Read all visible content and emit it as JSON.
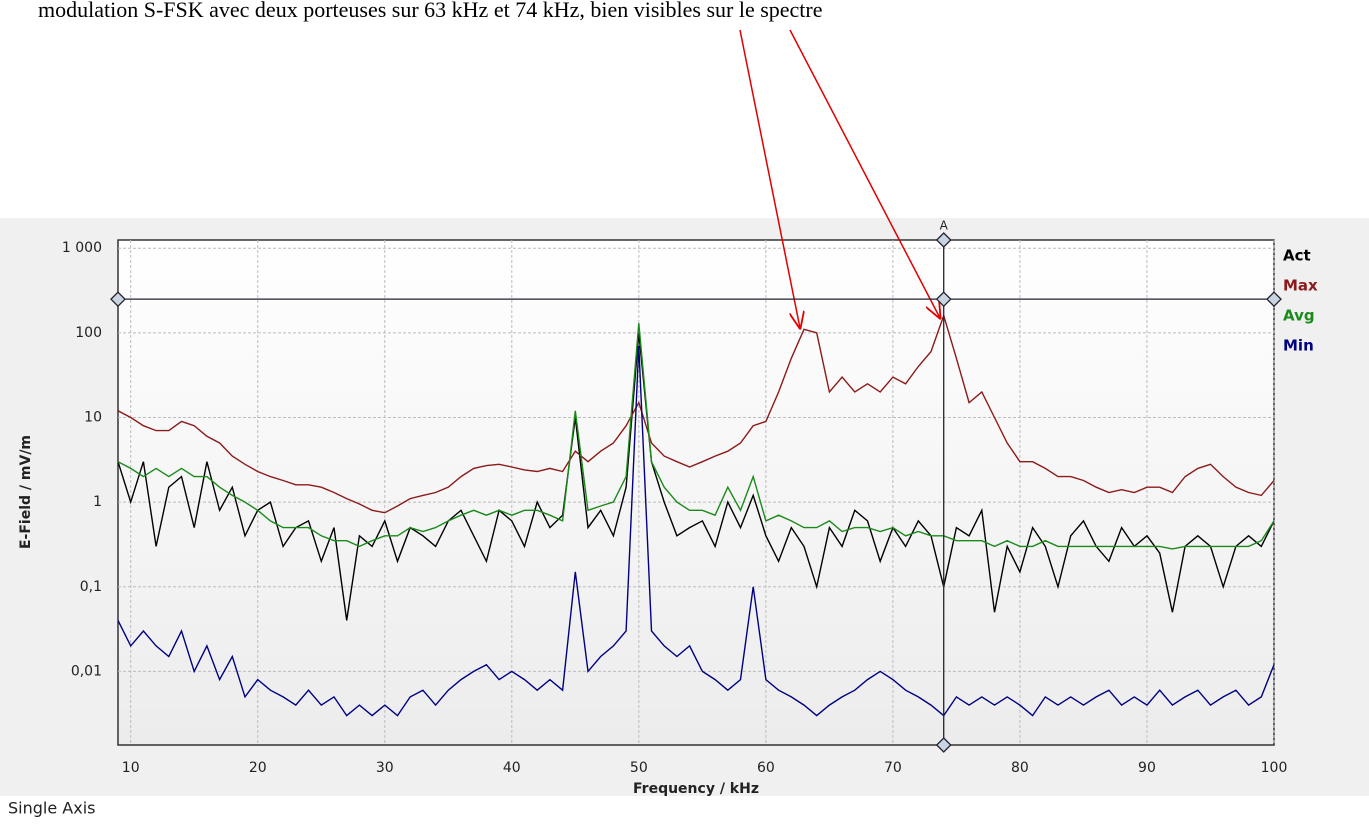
{
  "chart_data": {
    "type": "line",
    "title": "modulation S-FSK avec deux porteuses sur 63 kHz et 74 kHz, bien visibles sur le spectre",
    "x_label": "Frequency / kHz",
    "y_label": "E-Field / mV/m",
    "footer": "Single Axis",
    "yscale": "log",
    "grid": true,
    "legend": "right",
    "xlim": [
      9,
      100
    ],
    "xticks": [
      10,
      20,
      30,
      40,
      50,
      60,
      70,
      80,
      90,
      100
    ],
    "ylim": [
      0.00135,
      1250
    ],
    "yticks": [
      {
        "value": 0.01,
        "label": "0,01"
      },
      {
        "value": 0.1,
        "label": "0,1"
      },
      1,
      10,
      100,
      {
        "value": 1000,
        "label": "1 000"
      }
    ],
    "cursor": {
      "label": "A",
      "x": 74,
      "y": 250
    },
    "x": [
      9,
      10,
      11,
      12,
      13,
      14,
      15,
      16,
      17,
      18,
      19,
      20,
      21,
      22,
      23,
      24,
      25,
      26,
      27,
      28,
      29,
      30,
      31,
      32,
      33,
      34,
      35,
      36,
      37,
      38,
      39,
      40,
      41,
      42,
      43,
      44,
      45,
      46,
      47,
      48,
      49,
      50,
      51,
      52,
      53,
      54,
      55,
      56,
      57,
      58,
      59,
      60,
      61,
      62,
      63,
      64,
      65,
      66,
      67,
      68,
      69,
      70,
      71,
      72,
      73,
      74,
      75,
      76,
      77,
      78,
      79,
      80,
      81,
      82,
      83,
      84,
      85,
      86,
      87,
      88,
      89,
      90,
      91,
      92,
      93,
      94,
      95,
      96,
      97,
      98,
      99,
      100
    ],
    "series": [
      {
        "name": "Act",
        "color": "#000000",
        "values": [
          3,
          1,
          3,
          0.3,
          1.5,
          2,
          0.5,
          3,
          0.8,
          1.5,
          0.4,
          0.8,
          1,
          0.3,
          0.5,
          0.6,
          0.2,
          0.5,
          0.04,
          0.4,
          0.3,
          0.6,
          0.2,
          0.5,
          0.4,
          0.3,
          0.6,
          0.8,
          0.4,
          0.2,
          0.8,
          0.6,
          0.3,
          1,
          0.5,
          0.7,
          10,
          0.5,
          0.8,
          0.4,
          1.5,
          100,
          3,
          1,
          0.4,
          0.5,
          0.6,
          0.3,
          1,
          0.5,
          1.2,
          0.4,
          0.2,
          0.5,
          0.3,
          0.1,
          0.5,
          0.3,
          0.8,
          0.6,
          0.2,
          0.5,
          0.3,
          0.6,
          0.4,
          0.1,
          0.5,
          0.4,
          0.8,
          0.05,
          0.3,
          0.15,
          0.5,
          0.3,
          0.1,
          0.4,
          0.6,
          0.3,
          0.2,
          0.5,
          0.3,
          0.4,
          0.25,
          0.05,
          0.3,
          0.4,
          0.3,
          0.1,
          0.3,
          0.4,
          0.3,
          0.6
        ]
      },
      {
        "name": "Max",
        "color": "#8b1a1a",
        "values": [
          12,
          10,
          8,
          7,
          7,
          9,
          8,
          6,
          5,
          3.5,
          2.8,
          2.3,
          2,
          1.8,
          1.6,
          1.6,
          1.5,
          1.3,
          1.1,
          0.95,
          0.8,
          0.75,
          0.9,
          1.1,
          1.2,
          1.3,
          1.5,
          2,
          2.5,
          2.7,
          2.8,
          2.6,
          2.4,
          2.3,
          2.5,
          2.3,
          4,
          3,
          4,
          5,
          8,
          15,
          5,
          3.5,
          3,
          2.6,
          3,
          3.5,
          4,
          5,
          8,
          9,
          20,
          50,
          110,
          100,
          20,
          30,
          20,
          25,
          20,
          30,
          25,
          40,
          60,
          160,
          50,
          15,
          20,
          10,
          5,
          3,
          3,
          2.5,
          2,
          2,
          1.8,
          1.5,
          1.3,
          1.4,
          1.3,
          1.5,
          1.5,
          1.3,
          2,
          2.5,
          2.8,
          2,
          1.5,
          1.3,
          1.2,
          1.8
        ]
      },
      {
        "name": "Avg",
        "color": "#1a8a1a",
        "values": [
          3,
          2.5,
          2,
          2.5,
          2,
          2.5,
          2,
          2,
          1.5,
          1.2,
          1,
          0.8,
          0.6,
          0.5,
          0.5,
          0.5,
          0.4,
          0.35,
          0.35,
          0.3,
          0.35,
          0.4,
          0.4,
          0.5,
          0.45,
          0.5,
          0.6,
          0.7,
          0.8,
          0.7,
          0.8,
          0.7,
          0.8,
          0.8,
          0.7,
          0.6,
          12,
          0.8,
          0.9,
          1,
          2,
          130,
          3,
          1.5,
          1,
          0.8,
          0.8,
          0.7,
          1.5,
          0.8,
          2,
          0.6,
          0.7,
          0.6,
          0.5,
          0.5,
          0.6,
          0.45,
          0.5,
          0.5,
          0.45,
          0.5,
          0.4,
          0.45,
          0.4,
          0.4,
          0.35,
          0.35,
          0.35,
          0.3,
          0.35,
          0.3,
          0.3,
          0.35,
          0.3,
          0.3,
          0.3,
          0.3,
          0.3,
          0.3,
          0.3,
          0.3,
          0.3,
          0.28,
          0.3,
          0.3,
          0.3,
          0.3,
          0.3,
          0.3,
          0.35,
          0.6
        ]
      },
      {
        "name": "Min",
        "color": "#000080",
        "values": [
          0.04,
          0.02,
          0.03,
          0.02,
          0.015,
          0.03,
          0.01,
          0.02,
          0.008,
          0.015,
          0.005,
          0.008,
          0.006,
          0.005,
          0.004,
          0.006,
          0.004,
          0.005,
          0.003,
          0.004,
          0.003,
          0.004,
          0.003,
          0.005,
          0.006,
          0.004,
          0.006,
          0.008,
          0.01,
          0.012,
          0.008,
          0.01,
          0.008,
          0.006,
          0.008,
          0.006,
          0.15,
          0.01,
          0.015,
          0.02,
          0.03,
          70,
          0.03,
          0.02,
          0.015,
          0.02,
          0.01,
          0.008,
          0.006,
          0.008,
          0.1,
          0.008,
          0.006,
          0.005,
          0.004,
          0.003,
          0.004,
          0.005,
          0.006,
          0.008,
          0.01,
          0.008,
          0.006,
          0.005,
          0.004,
          0.003,
          0.005,
          0.004,
          0.005,
          0.004,
          0.005,
          0.004,
          0.003,
          0.005,
          0.004,
          0.005,
          0.004,
          0.005,
          0.006,
          0.004,
          0.005,
          0.004,
          0.006,
          0.004,
          0.005,
          0.006,
          0.004,
          0.005,
          0.006,
          0.004,
          0.005,
          0.012
        ]
      }
    ]
  }
}
